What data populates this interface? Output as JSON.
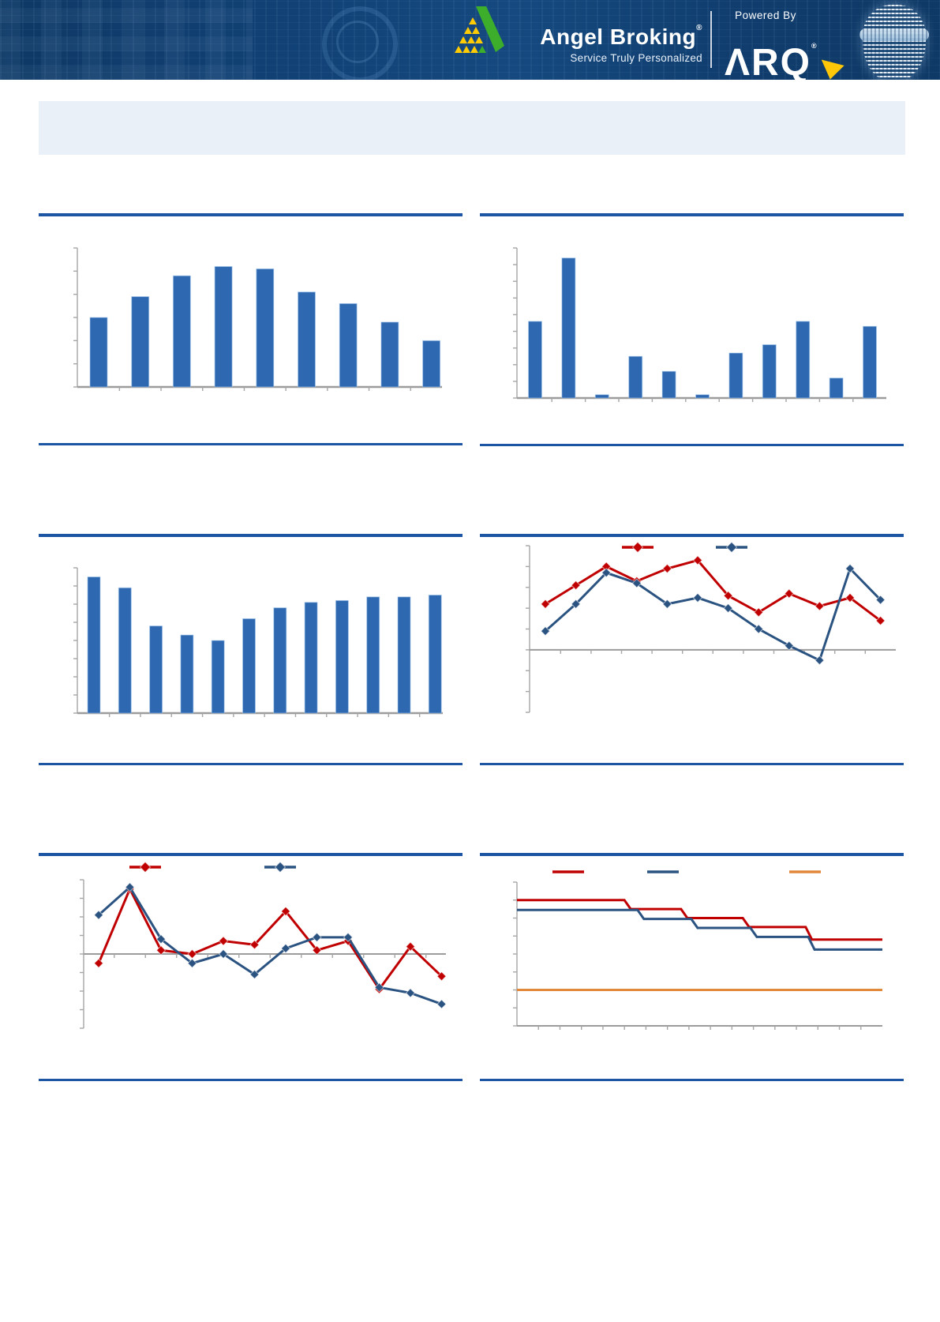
{
  "header": {
    "brand": "Angel Broking",
    "brand_reg": "®",
    "tagline": "Service Truly Personalized",
    "powered_by": "Powered By",
    "arq": {
      "a": "Λ",
      "rq": "RQ",
      "reg": "®"
    },
    "colors": {
      "bg_dark": "#0e3865",
      "bg_mid": "#15497f",
      "logo_green": "#3dae2b",
      "logo_yellow": "#ffcb05",
      "arq_yellow": "#fdc608"
    }
  },
  "title_box": {
    "text": ""
  },
  "colors": {
    "rule_blue": "#1d55a5",
    "bar_blue": "#2e68b0",
    "line_red": "#c00000",
    "line_blue": "#2b5381",
    "line_orange": "#e2883b",
    "axis_gray": "#a6a6a6",
    "baseline_gray": "#9c9c9c",
    "title_box_bg": "#eaf0f8"
  },
  "chart_data": [
    {
      "id": "bar-top-left",
      "type": "bar",
      "title": "",
      "xlabel": "",
      "ylabel": "",
      "bar_color": "#2e68b0",
      "ylim": [
        0,
        6
      ],
      "grid": false,
      "axis_labels_visible": false,
      "categories": [
        "",
        "",
        "",
        "",
        "",
        "",
        "",
        "",
        ""
      ],
      "values": [
        3.0,
        3.9,
        4.8,
        5.2,
        5.1,
        4.1,
        3.6,
        2.8,
        2.0
      ]
    },
    {
      "id": "bar-top-right",
      "type": "bar",
      "title": "",
      "xlabel": "",
      "ylabel": "",
      "bar_color": "#2e68b0",
      "ylim": [
        0,
        9
      ],
      "grid": false,
      "axis_labels_visible": false,
      "categories": [
        "",
        "",
        "",
        "",
        "",
        "",
        "",
        "",
        "",
        "",
        ""
      ],
      "values": [
        4.6,
        8.4,
        0.2,
        2.5,
        1.6,
        0.2,
        2.7,
        3.2,
        4.6,
        1.2,
        4.3
      ]
    },
    {
      "id": "bar-mid-left",
      "type": "bar",
      "title": "",
      "xlabel": "",
      "ylabel": "",
      "bar_color": "#2e68b0",
      "ylim": [
        0,
        8
      ],
      "grid": false,
      "axis_labels_visible": false,
      "categories": [
        "",
        "",
        "",
        "",
        "",
        "",
        "",
        "",
        "",
        "",
        "",
        ""
      ],
      "values": [
        7.5,
        6.9,
        4.8,
        4.3,
        4.0,
        5.2,
        5.8,
        6.1,
        6.2,
        6.4,
        6.4,
        6.5
      ]
    },
    {
      "id": "line-mid-right",
      "type": "line",
      "title": "",
      "xlabel": "",
      "ylabel": "",
      "ylim": [
        -3,
        5
      ],
      "grid": false,
      "axis_labels_visible": false,
      "legend_position": "top-center",
      "legend_labels_visible": false,
      "marker": "diamond",
      "x": [
        "",
        "",
        "",
        "",
        "",
        "",
        "",
        "",
        "",
        "",
        "",
        ""
      ],
      "series": [
        {
          "name": "series-red",
          "color": "#c00000",
          "values": [
            2.2,
            3.1,
            4.0,
            3.3,
            3.9,
            4.3,
            2.6,
            1.8,
            2.7,
            2.1,
            2.5,
            1.4
          ]
        },
        {
          "name": "series-blue",
          "color": "#2b5381",
          "values": [
            0.9,
            2.2,
            3.7,
            3.2,
            2.2,
            2.5,
            2.0,
            1.0,
            0.2,
            -0.5,
            3.9,
            2.4
          ]
        }
      ]
    },
    {
      "id": "line-bottom-left",
      "type": "line",
      "title": "",
      "xlabel": "",
      "ylabel": "",
      "ylim": [
        -4,
        4
      ],
      "grid": false,
      "axis_labels_visible": false,
      "legend_position": "top-left",
      "legend_labels_visible": false,
      "marker": "diamond",
      "x": [
        "",
        "",
        "",
        "",
        "",
        "",
        "",
        "",
        "",
        "",
        "",
        ""
      ],
      "series": [
        {
          "name": "series-red",
          "color": "#c00000",
          "values": [
            -0.5,
            3.5,
            0.2,
            0.0,
            0.7,
            0.5,
            2.3,
            0.2,
            0.7,
            -1.9,
            0.4,
            -1.2
          ]
        },
        {
          "name": "series-blue",
          "color": "#2b5381",
          "values": [
            2.1,
            3.6,
            0.8,
            -0.5,
            0.0,
            -1.1,
            0.3,
            0.9,
            0.9,
            -1.8,
            -2.1,
            -2.7
          ]
        }
      ]
    },
    {
      "id": "step-bottom-right",
      "type": "step",
      "title": "",
      "xlabel": "",
      "ylabel": "",
      "ylim": [
        0,
        8
      ],
      "grid": false,
      "axis_labels_visible": false,
      "legend_position": "top",
      "legend_labels_visible": false,
      "series": [
        {
          "name": "step-red",
          "color": "#c00000",
          "levels": [
            7.0,
            6.5,
            6.0,
            5.5,
            4.8
          ],
          "drops_x_frac": [
            0.294,
            0.449,
            0.618,
            0.79
          ]
        },
        {
          "name": "step-blue",
          "color": "#2b5381",
          "levels": [
            6.45,
            5.95,
            5.45,
            4.95,
            4.25
          ],
          "drops_x_frac": [
            0.33,
            0.477,
            0.639,
            0.797
          ]
        },
        {
          "name": "flat-orange",
          "color": "#e2883b",
          "level": 2.0
        }
      ]
    }
  ]
}
